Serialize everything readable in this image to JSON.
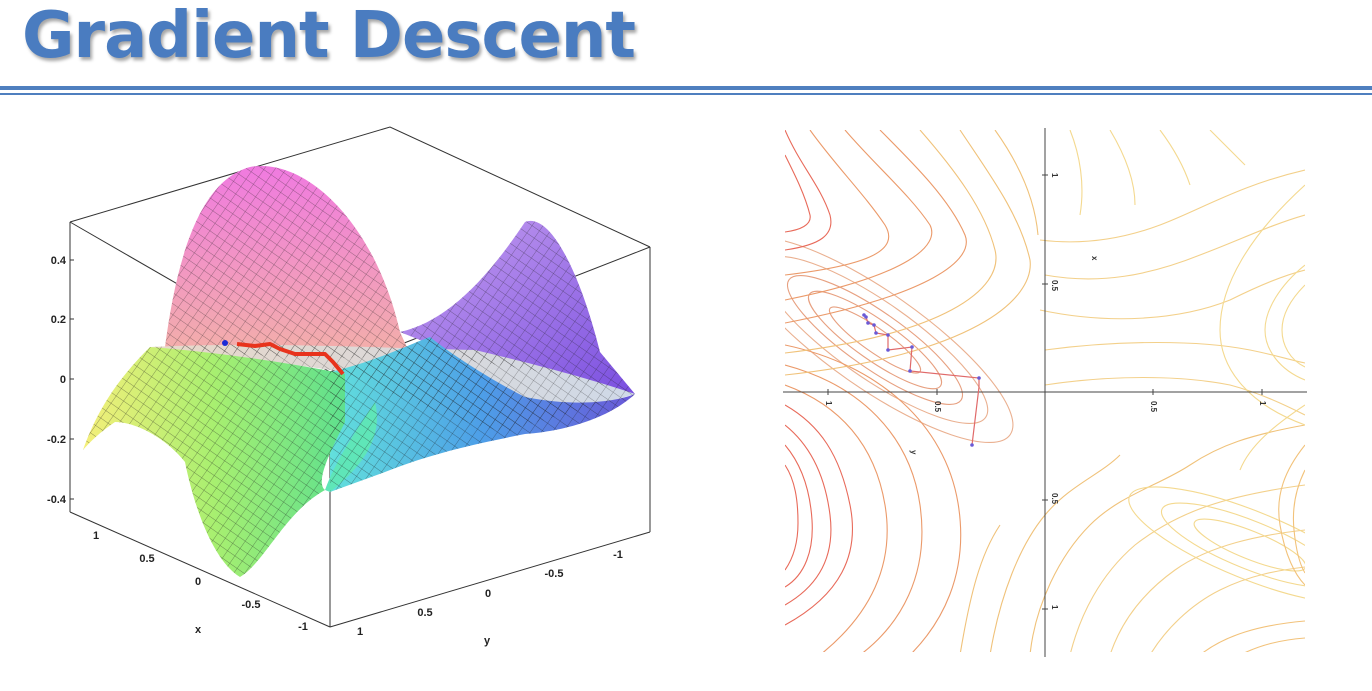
{
  "slide": {
    "title": "Gradient Descent"
  },
  "surface_plot": {
    "z_ticks": [
      "0.4",
      "0.2",
      "0",
      "-0.2",
      "-0.4"
    ],
    "x_ticks": [
      "1",
      "0.5",
      "0",
      "-0.5",
      "-1"
    ],
    "y_ticks": [
      "1",
      "0.5",
      "0",
      "-0.5",
      "-1"
    ],
    "x_label": "x",
    "y_label": "y",
    "path_color": "#e8331c",
    "start_color": "#1a2bd6"
  },
  "contour_plot": {
    "horizontal_ticks": [
      "1",
      "0.5",
      "0.5",
      "1"
    ],
    "vertical_ticks": [
      "1",
      "0.5",
      "0.5",
      "1"
    ],
    "x_label": "x",
    "y_label": "y",
    "path_color": "#e06a6a",
    "point_color": "#6a5ad6"
  }
}
